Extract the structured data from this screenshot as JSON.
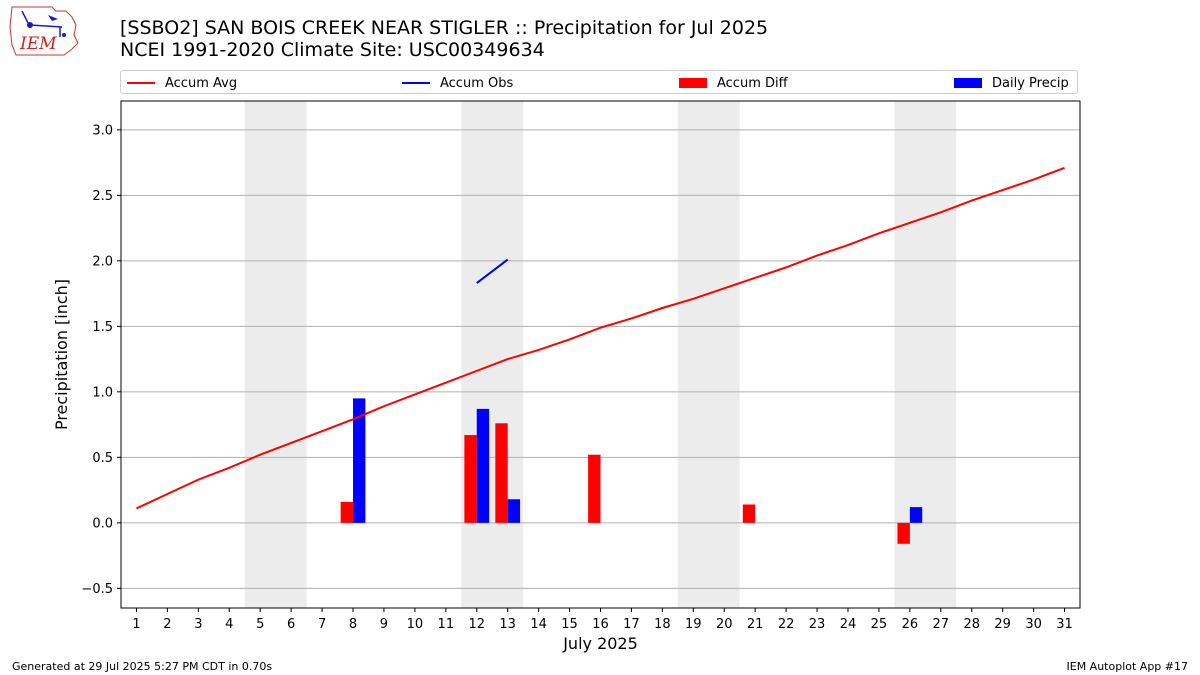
{
  "header": {
    "logo_text": "IEM",
    "title_line1": "[SSBO2] SAN BOIS CREEK NEAR STIGLER :: Precipitation for Jul 2025",
    "title_line2": "NCEI 1991-2020 Climate Site: USC00349634"
  },
  "legend": {
    "items": [
      {
        "label": "Accum Avg",
        "kind": "line",
        "color": "#ff0000"
      },
      {
        "label": "Accum Obs",
        "kind": "line",
        "color": "#0000ff"
      },
      {
        "label": "Accum Diff",
        "kind": "bar",
        "color": "#ff0000"
      },
      {
        "label": "Daily Precip",
        "kind": "bar",
        "color": "#0000ff"
      }
    ]
  },
  "chart_data": {
    "type": "bar",
    "xlabel": "July 2025",
    "ylabel": "Precipitation [inch]",
    "xlim": [
      0.5,
      31.5
    ],
    "ylim": [
      -0.65,
      3.22
    ],
    "x": [
      1,
      2,
      3,
      4,
      5,
      6,
      7,
      8,
      9,
      10,
      11,
      12,
      13,
      14,
      15,
      16,
      17,
      18,
      19,
      20,
      21,
      22,
      23,
      24,
      25,
      26,
      27,
      28,
      29,
      30,
      31
    ],
    "yticks": [
      -0.5,
      0.0,
      0.5,
      1.0,
      1.5,
      2.0,
      2.5,
      3.0
    ],
    "ytick_labels": [
      "−0.5",
      "0.0",
      "0.5",
      "1.0",
      "1.5",
      "2.0",
      "2.5",
      "3.0"
    ],
    "grid": "horizontal",
    "weekend_shading": [
      [
        4.5,
        6.5
      ],
      [
        11.5,
        13.5
      ],
      [
        18.5,
        20.5
      ],
      [
        25.5,
        27.5
      ]
    ],
    "series": [
      {
        "name": "Accum Avg",
        "type": "line",
        "color": "#ff0000",
        "x": [
          1,
          2,
          3,
          4,
          5,
          6,
          7,
          8,
          9,
          10,
          11,
          12,
          13,
          14,
          15,
          16,
          17,
          18,
          19,
          20,
          21,
          22,
          23,
          24,
          25,
          26,
          27,
          28,
          29,
          30,
          31
        ],
        "values": [
          0.11,
          0.22,
          0.33,
          0.42,
          0.52,
          0.61,
          0.7,
          0.79,
          0.89,
          0.98,
          1.07,
          1.16,
          1.25,
          1.32,
          1.4,
          1.49,
          1.56,
          1.64,
          1.71,
          1.79,
          1.87,
          1.95,
          2.04,
          2.12,
          2.21,
          2.29,
          2.37,
          2.46,
          2.54,
          2.62,
          2.71
        ]
      },
      {
        "name": "Accum Obs",
        "type": "line",
        "color": "#0000ff",
        "x": [
          12,
          13
        ],
        "values": [
          1.83,
          2.01
        ]
      },
      {
        "name": "Accum Diff",
        "type": "bar",
        "color": "#ff0000",
        "x": [
          8,
          12,
          13,
          16,
          21,
          26
        ],
        "values": [
          0.16,
          0.67,
          0.76,
          0.52,
          0.14,
          -0.16
        ]
      },
      {
        "name": "Daily Precip",
        "type": "bar",
        "color": "#0000ff",
        "x": [
          8,
          12,
          13,
          26
        ],
        "values": [
          0.95,
          0.87,
          0.18,
          0.12
        ]
      }
    ]
  },
  "footer": {
    "generated": "Generated at 29 Jul 2025 5:27 PM CDT in 0.70s",
    "app": "IEM Autoplot App #17"
  }
}
